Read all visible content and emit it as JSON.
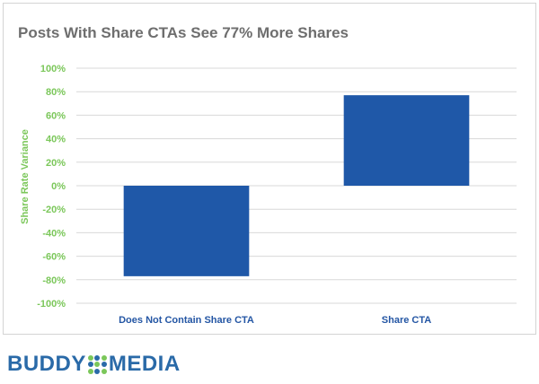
{
  "chart_data": {
    "type": "bar",
    "title": "Posts With Share CTAs See 77% More Shares",
    "xlabel": "",
    "ylabel": "Share Rate Variance",
    "categories": [
      "Does Not Contain Share CTA",
      "Share CTA"
    ],
    "values": [
      -77,
      77
    ],
    "ylim": [
      -100,
      100
    ],
    "yticks": [
      "100%",
      "80%",
      "60%",
      "40%",
      "20%",
      "0%",
      "-20%",
      "-40%",
      "-60%",
      "-80%",
      "-100%"
    ],
    "grid": true,
    "colors": {
      "bar": "#1f58a8",
      "axis_text": "#7bc75a",
      "category_text": "#2456a4"
    }
  },
  "logo": {
    "left_text": "BUDDY",
    "right_text": "MEDIA",
    "dot_colors": [
      "#7bc75a",
      "#2a6aa8",
      "#7bc75a",
      "#2a6aa8",
      "#7bc75a",
      "#2a6aa8",
      "#7bc75a",
      "#2a6aa8",
      "#7bc75a"
    ]
  }
}
